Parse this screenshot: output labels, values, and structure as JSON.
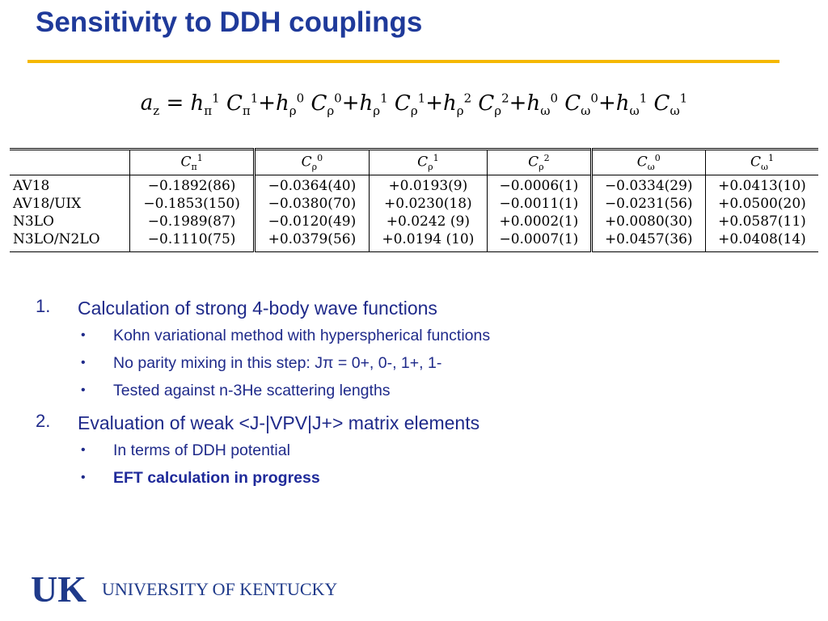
{
  "slide": {
    "title": "Sensitivity to DDH couplings"
  },
  "equation": {
    "lhs": "a",
    "lhs_sub": "z",
    "terms": [
      {
        "h_sup": "1",
        "h_sub": "π",
        "c_sup": "1",
        "c_sub": "π"
      },
      {
        "h_sup": "0",
        "h_sub": "ρ",
        "c_sup": "0",
        "c_sub": "ρ"
      },
      {
        "h_sup": "1",
        "h_sub": "ρ",
        "c_sup": "1",
        "c_sub": "ρ"
      },
      {
        "h_sup": "2",
        "h_sub": "ρ",
        "c_sup": "2",
        "c_sub": "ρ"
      },
      {
        "h_sup": "0",
        "h_sub": "ω",
        "c_sup": "0",
        "c_sub": "ω"
      },
      {
        "h_sup": "1",
        "h_sub": "ω",
        "c_sup": "1",
        "c_sub": "ω"
      }
    ]
  },
  "table": {
    "columns": [
      {
        "sup": "1",
        "sub": "π"
      },
      {
        "sup": "0",
        "sub": "ρ"
      },
      {
        "sup": "1",
        "sub": "ρ"
      },
      {
        "sup": "2",
        "sub": "ρ"
      },
      {
        "sup": "0",
        "sub": "ω"
      },
      {
        "sup": "1",
        "sub": "ω"
      }
    ],
    "rows": [
      {
        "label": "AV18",
        "values": [
          "−0.1892(86)",
          "−0.0364(40)",
          "+0.0193(9)",
          "−0.0006(1)",
          "−0.0334(29)",
          "+0.0413(10)"
        ]
      },
      {
        "label": "AV18/UIX",
        "values": [
          "−0.1853(150)",
          "−0.0380(70)",
          "+0.0230(18)",
          "−0.0011(1)",
          "−0.0231(56)",
          "+0.0500(20)"
        ]
      },
      {
        "label": "N3LO",
        "values": [
          "−0.1989(87)",
          "−0.0120(49)",
          "+0.0242 (9)",
          "+0.0002(1)",
          "+0.0080(30)",
          "+0.0587(11)"
        ]
      },
      {
        "label": "N3LO/N2LO",
        "values": [
          "−0.1110(75)",
          "+0.0379(56)",
          "+0.0194 (10)",
          "−0.0007(1)",
          "+0.0457(36)",
          "+0.0408(14)"
        ]
      }
    ]
  },
  "steps": [
    {
      "number": "1.",
      "text": "Calculation of strong 4-body wave functions",
      "bullets": [
        "Kohn variational method with hyperspherical functions",
        "No parity mixing in this step:  Jπ =  0+, 0-, 1+, 1-",
        "Tested against n-3He scattering lengths"
      ]
    },
    {
      "number": "2.",
      "text": "Evaluation of weak <J-|VPV|J+> matrix elements",
      "bullets": [
        "In terms of DDH potential",
        "EFT calculation in progress"
      ]
    }
  ],
  "footer": {
    "logo_letters": "UK",
    "logo_text": "UNIVERSITY OF KENTUCKY"
  },
  "colors": {
    "title": "#1f3a9a",
    "body_text": "#1f2a8a",
    "rule": "#f5b800",
    "logo": "#1f3a8a"
  },
  "icons": {
    "bullet": "bullet-dot-icon",
    "logo": "uk-logo-icon"
  }
}
